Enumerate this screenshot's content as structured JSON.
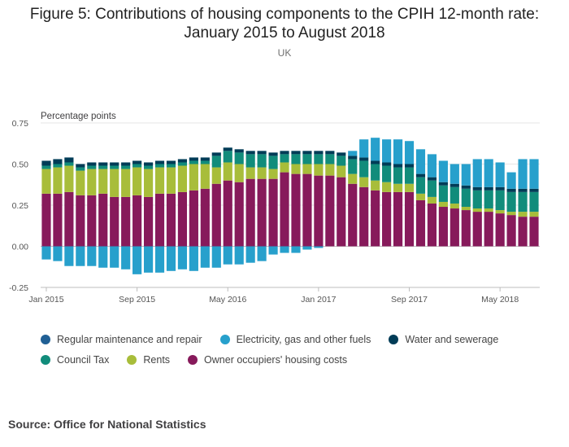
{
  "title": "Figure 5: Contributions of housing components to the CPIH 12-month rate: January 2015 to August 2018",
  "title_lines": [
    "Figure 5: Contributions of housing components to the CPIH 12-month rate:",
    "January 2015 to August 2018"
  ],
  "subtitle": "UK",
  "source": "Source: Office for National Statistics",
  "chart_data": {
    "type": "bar",
    "stacked": true,
    "ylabel": "Percentage points",
    "ylim": [
      -0.25,
      0.75
    ],
    "yticks": [
      -0.25,
      0.0,
      0.25,
      0.5,
      0.75
    ],
    "ytick_labels": [
      "-0.25",
      "0.00",
      "0.25",
      "0.50",
      "0.75"
    ],
    "xtick_labels": [
      "Jan 2015",
      "Sep 2015",
      "May 2016",
      "Jan 2017",
      "Sep 2017",
      "May 2018"
    ],
    "xtick_indices": [
      0,
      8,
      16,
      24,
      32,
      40
    ],
    "grid": true,
    "legend_position": "bottom",
    "categories": [
      "Jan 2015",
      "Feb 2015",
      "Mar 2015",
      "Apr 2015",
      "May 2015",
      "Jun 2015",
      "Jul 2015",
      "Aug 2015",
      "Sep 2015",
      "Oct 2015",
      "Nov 2015",
      "Dec 2015",
      "Jan 2016",
      "Feb 2016",
      "Mar 2016",
      "Apr 2016",
      "May 2016",
      "Jun 2016",
      "Jul 2016",
      "Aug 2016",
      "Sep 2016",
      "Oct 2016",
      "Nov 2016",
      "Dec 2016",
      "Jan 2017",
      "Feb 2017",
      "Mar 2017",
      "Apr 2017",
      "May 2017",
      "Jun 2017",
      "Jul 2017",
      "Aug 2017",
      "Sep 2017",
      "Oct 2017",
      "Nov 2017",
      "Dec 2017",
      "Jan 2018",
      "Feb 2018",
      "Mar 2018",
      "Apr 2018",
      "May 2018",
      "Jun 2018",
      "Jul 2018",
      "Aug 2018"
    ],
    "series": [
      {
        "name": "Owner occupiers' housing costs",
        "color": "#871a5b",
        "values": [
          0.32,
          0.32,
          0.33,
          0.31,
          0.31,
          0.32,
          0.3,
          0.3,
          0.31,
          0.3,
          0.32,
          0.32,
          0.33,
          0.34,
          0.35,
          0.38,
          0.4,
          0.39,
          0.41,
          0.41,
          0.41,
          0.45,
          0.44,
          0.44,
          0.43,
          0.43,
          0.42,
          0.38,
          0.36,
          0.34,
          0.33,
          0.33,
          0.33,
          0.28,
          0.26,
          0.24,
          0.23,
          0.22,
          0.21,
          0.21,
          0.2,
          0.19,
          0.18,
          0.18
        ]
      },
      {
        "name": "Rents",
        "color": "#a8bd3a",
        "values": [
          0.15,
          0.16,
          0.16,
          0.15,
          0.16,
          0.15,
          0.17,
          0.17,
          0.17,
          0.17,
          0.16,
          0.16,
          0.16,
          0.16,
          0.15,
          0.1,
          0.11,
          0.11,
          0.07,
          0.07,
          0.06,
          0.06,
          0.06,
          0.06,
          0.07,
          0.07,
          0.07,
          0.06,
          0.06,
          0.06,
          0.06,
          0.05,
          0.05,
          0.04,
          0.04,
          0.03,
          0.03,
          0.02,
          0.02,
          0.02,
          0.02,
          0.02,
          0.03,
          0.03
        ]
      },
      {
        "name": "Council Tax",
        "color": "#118c7b",
        "values": [
          0.02,
          0.02,
          0.02,
          0.02,
          0.02,
          0.02,
          0.02,
          0.02,
          0.02,
          0.02,
          0.02,
          0.02,
          0.02,
          0.02,
          0.02,
          0.07,
          0.07,
          0.07,
          0.08,
          0.08,
          0.08,
          0.05,
          0.06,
          0.06,
          0.06,
          0.06,
          0.06,
          0.09,
          0.1,
          0.1,
          0.1,
          0.1,
          0.1,
          0.1,
          0.1,
          0.1,
          0.1,
          0.11,
          0.11,
          0.11,
          0.12,
          0.12,
          0.12,
          0.12
        ]
      },
      {
        "name": "Water and sewerage",
        "color": "#003c57",
        "values": [
          0.03,
          0.03,
          0.03,
          0.02,
          0.02,
          0.02,
          0.02,
          0.02,
          0.02,
          0.02,
          0.02,
          0.02,
          0.02,
          0.02,
          0.02,
          0.02,
          0.02,
          0.02,
          0.02,
          0.02,
          0.02,
          0.02,
          0.02,
          0.02,
          0.02,
          0.02,
          0.02,
          0.02,
          0.02,
          0.02,
          0.02,
          0.02,
          0.02,
          0.02,
          0.02,
          0.02,
          0.02,
          0.02,
          0.02,
          0.02,
          0.02,
          0.02,
          0.02,
          0.02
        ]
      },
      {
        "name": "Regular maintenance and repair",
        "color": "#206095",
        "values": [
          0.0,
          0.0,
          0.0,
          0.0,
          0.0,
          0.0,
          0.0,
          0.0,
          0.0,
          0.0,
          0.0,
          0.0,
          0.0,
          0.0,
          0.0,
          0.0,
          0.0,
          0.0,
          0.0,
          0.0,
          0.0,
          0.0,
          0.0,
          0.0,
          0.0,
          0.0,
          0.0,
          0.0,
          0.0,
          0.0,
          0.0,
          0.0,
          0.0,
          0.0,
          0.0,
          0.0,
          0.0,
          0.0,
          0.0,
          0.0,
          0.0,
          0.0,
          0.0,
          0.0
        ]
      },
      {
        "name": "Electricity, gas and other fuels",
        "color": "#27a0cc",
        "values": [
          -0.08,
          -0.09,
          -0.12,
          -0.12,
          -0.12,
          -0.13,
          -0.13,
          -0.14,
          -0.17,
          -0.16,
          -0.16,
          -0.15,
          -0.14,
          -0.15,
          -0.13,
          -0.13,
          -0.11,
          -0.11,
          -0.1,
          -0.09,
          -0.05,
          -0.04,
          -0.04,
          -0.02,
          -0.01,
          0.0,
          0.0,
          0.03,
          0.11,
          0.14,
          0.14,
          0.15,
          0.14,
          0.15,
          0.14,
          0.13,
          0.12,
          0.13,
          0.17,
          0.17,
          0.15,
          0.1,
          0.18,
          0.18
        ]
      }
    ]
  },
  "legend": [
    {
      "label": "Regular maintenance and repair",
      "color": "#206095"
    },
    {
      "label": "Electricity, gas and other fuels",
      "color": "#27a0cc"
    },
    {
      "label": "Water and sewerage",
      "color": "#003c57"
    },
    {
      "label": "Council Tax",
      "color": "#118c7b"
    },
    {
      "label": "Rents",
      "color": "#a8bd3a"
    },
    {
      "label": "Owner occupiers' housing costs",
      "color": "#871a5b"
    }
  ]
}
